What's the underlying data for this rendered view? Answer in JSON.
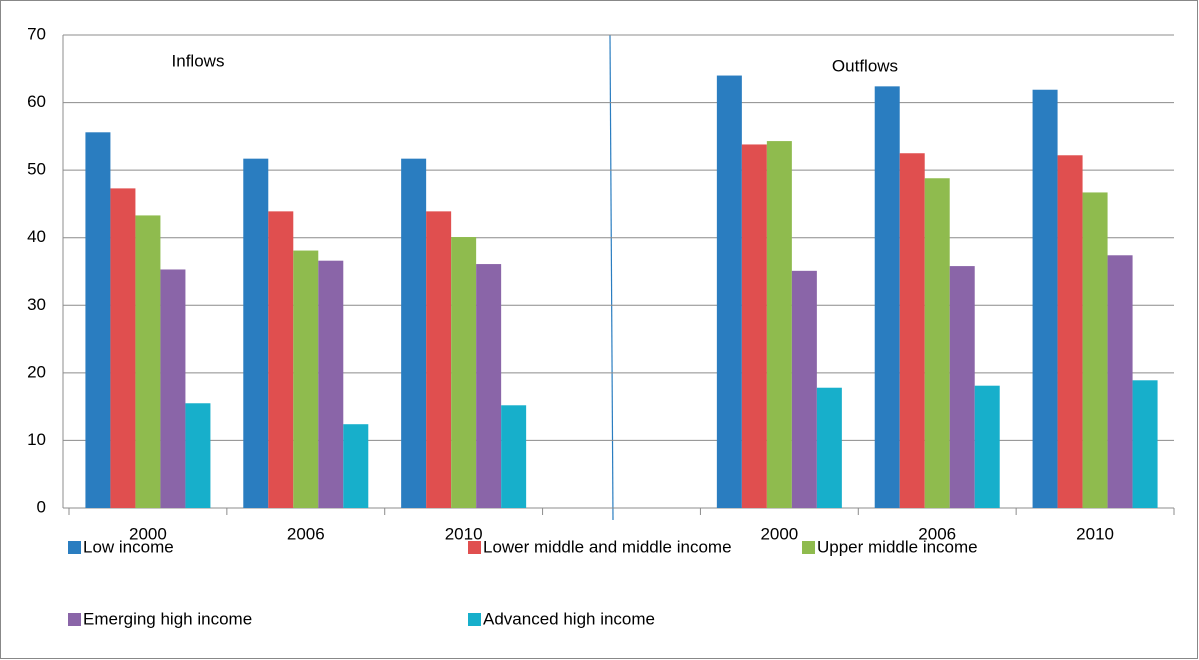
{
  "chart_data": {
    "type": "bar",
    "annotations": [
      "Inflows",
      "Outflows"
    ],
    "categories": [
      "2000",
      "2006",
      "2010",
      null,
      "2000",
      "2006",
      "2010"
    ],
    "series": [
      {
        "name": "Low income",
        "color": "#2a7dc0",
        "values": [
          55.6,
          51.7,
          51.7,
          null,
          64,
          62.4,
          61.9
        ]
      },
      {
        "name": "Lower middle and middle income",
        "color": "#e04f4f",
        "values": [
          47.3,
          43.9,
          43.9,
          null,
          53.8,
          52.5,
          52.2
        ]
      },
      {
        "name": "Upper middle income",
        "color": "#8fbb4e",
        "values": [
          43.3,
          38.1,
          40.1,
          null,
          54.3,
          48.8,
          46.7
        ]
      },
      {
        "name": "Emerging high income",
        "color": "#8a65a8",
        "values": [
          35.3,
          36.6,
          36.1,
          null,
          35.1,
          35.8,
          37.4
        ]
      },
      {
        "name": "Advanced high income",
        "color": "#17afcb",
        "values": [
          15.5,
          12.4,
          15.2,
          null,
          17.8,
          18.1,
          18.9
        ]
      }
    ],
    "ylim": [
      0,
      70
    ],
    "yticks": [
      0,
      10,
      20,
      30,
      40,
      50,
      60,
      70
    ],
    "grid": true
  }
}
